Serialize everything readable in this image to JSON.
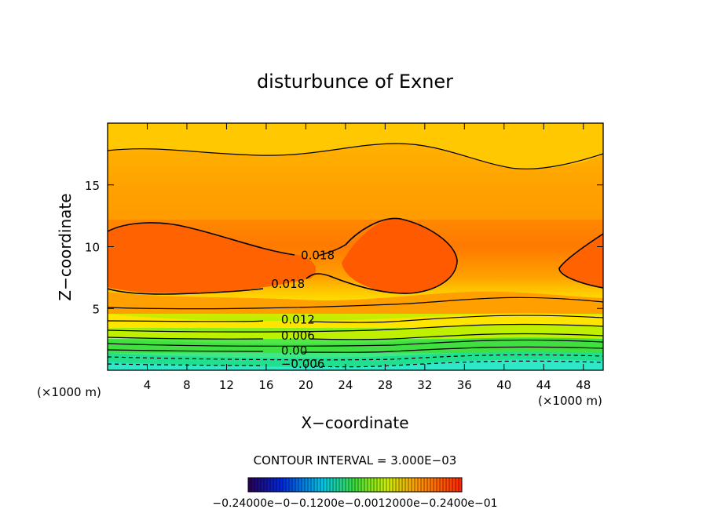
{
  "chart_data": {
    "type": "contour",
    "title": "disturbunce of Exner",
    "xlabel": "X−coordinate",
    "ylabel": "Z−coordinate",
    "x_unit_left": "(×1000 m)",
    "x_unit_right": "(×1000 m)",
    "xlim": [
      0,
      50
    ],
    "ylim": [
      0,
      20
    ],
    "x_ticks": [
      "4",
      "8",
      "12",
      "16",
      "20",
      "24",
      "28",
      "32",
      "36",
      "40",
      "44",
      "48"
    ],
    "y_ticks": [
      "5",
      "10",
      "15"
    ],
    "contour_interval_text": "CONTOUR INTERVAL = 3.000E−03",
    "contour_interval": 0.003,
    "contour_labels": [
      {
        "text": "0.018",
        "x": 19.5,
        "z": 9.3
      },
      {
        "text": "0.018",
        "x": 16.5,
        "z": 7.0
      },
      {
        "text": "0.012",
        "x": 17.5,
        "z": 4.1
      },
      {
        "text": "0.006",
        "x": 17.5,
        "z": 2.8
      },
      {
        "text": "0.00",
        "x": 17.5,
        "z": 1.6
      },
      {
        "text": "−0.006",
        "x": 17.5,
        "z": 0.5
      }
    ],
    "colorbar_labels_text": "−0.24000e−0−0.1200e−0.0012000e−0.2400e−01",
    "colorbar_range": [
      -0.024,
      0.024
    ],
    "colors": {
      "cyan": "#2ee8c8",
      "green": "#30e060",
      "yellowgreen": "#b8f000",
      "yellow": "#ffe000",
      "orange": "#ff9a00",
      "red": "#ff4800"
    }
  }
}
